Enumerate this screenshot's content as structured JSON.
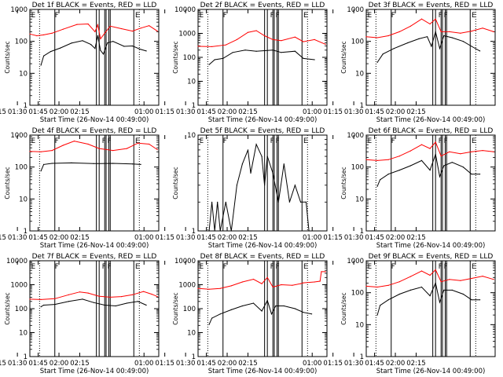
{
  "colors": {
    "events": "#000000",
    "lld": "#ff0000",
    "background": "#ffffff",
    "axis": "#000000"
  },
  "chart_data": [
    {
      "type": "line",
      "title": "Det 1f BLACK = Events, RED = LLD",
      "xlabel": "Start Time (26-Nov-14 00:49:00)",
      "ylabel": "Counts/sec",
      "yscale": "log",
      "ylim": [
        1,
        1000
      ],
      "xlim_min": [
        50,
        143
      ],
      "xticklabels": [
        "01:00",
        "01:15",
        "01:30",
        "01:45",
        "02:00",
        "02:15"
      ],
      "yticklabels": [
        "1",
        "10",
        "100",
        "1000"
      ],
      "dotted_lines_min": [
        57,
        129
      ],
      "solid_lines_min": [
        68,
        98,
        100,
        104,
        105,
        107,
        108,
        125
      ],
      "markers": [
        {
          "label": "E",
          "x": 51
        },
        {
          "label": "F",
          "x": 68
        },
        {
          "label": "E",
          "x": 126
        }
      ],
      "series": [
        {
          "name": "BLACK = Events",
          "x": [
            58,
            60,
            65,
            72,
            80,
            88,
            94,
            97,
            99,
            101,
            103,
            106,
            110,
            118,
            124,
            130,
            134
          ],
          "values": [
            18,
            35,
            48,
            62,
            88,
            105,
            80,
            60,
            150,
            52,
            40,
            90,
            100,
            70,
            72,
            56,
            50
          ]
        },
        {
          "name": "RED = LLD",
          "x": [
            50,
            55,
            60,
            66,
            74,
            84,
            92,
            97,
            99,
            101,
            104,
            108,
            116,
            124,
            130,
            136,
            142
          ],
          "values": [
            170,
            150,
            160,
            180,
            240,
            340,
            350,
            200,
            330,
            120,
            180,
            300,
            250,
            210,
            260,
            310,
            210
          ]
        }
      ]
    },
    {
      "type": "line",
      "title": "Det 2f BLACK = Events, RED = LLD",
      "xlabel": "Start Time (26-Nov-14 00:49:00)",
      "ylabel": "Counts/sec",
      "yscale": "log",
      "ylim": [
        1,
        10000
      ],
      "xlim_min": [
        50,
        143
      ],
      "xticklabels": [
        "01:00",
        "01:15",
        "01:30",
        "01:45",
        "02:00",
        "02:15"
      ],
      "yticklabels": [
        "1",
        "10",
        "100",
        "1000",
        "10000"
      ],
      "dotted_lines_min": [
        57,
        129
      ],
      "solid_lines_min": [
        68,
        98,
        100,
        104,
        105,
        107,
        108,
        125
      ],
      "markers": [
        {
          "label": "E",
          "x": 51
        },
        {
          "label": "F",
          "x": 68
        },
        {
          "label": "F",
          "x": 102
        },
        {
          "label": "F",
          "x": 106
        },
        {
          "label": "E",
          "x": 126
        }
      ],
      "series": [
        {
          "name": "BLACK = Events",
          "x": [
            58,
            62,
            68,
            75,
            84,
            92,
            98,
            104,
            110,
            120,
            126,
            134
          ],
          "values": [
            50,
            80,
            90,
            160,
            200,
            180,
            190,
            200,
            160,
            180,
            90,
            80
          ]
        },
        {
          "name": "RED = LLD",
          "x": [
            50,
            60,
            70,
            78,
            86,
            92,
            98,
            104,
            110,
            120,
            126,
            134,
            142
          ],
          "values": [
            290,
            280,
            330,
            550,
            1100,
            1300,
            800,
            550,
            500,
            700,
            450,
            550,
            350
          ]
        }
      ]
    },
    {
      "type": "line",
      "title": "Det 3f BLACK = Events, RED = LLD",
      "xlabel": "Start Time (26-Nov-14 00:49:00)",
      "ylabel": "Counts/sec",
      "yscale": "log",
      "ylim": [
        1,
        1000
      ],
      "xlim_min": [
        50,
        143
      ],
      "xticklabels": [
        "01:00",
        "01:15",
        "01:30",
        "01:45",
        "02:00",
        "02:15"
      ],
      "yticklabels": [
        "1",
        "10",
        "100",
        "1000"
      ],
      "dotted_lines_min": [
        57,
        129
      ],
      "solid_lines_min": [
        68,
        98,
        100,
        104,
        105,
        107,
        108,
        125
      ],
      "markers": [
        {
          "label": "E",
          "x": 51
        },
        {
          "label": "F",
          "x": 68
        },
        {
          "label": "F",
          "x": 102
        },
        {
          "label": "F",
          "x": 106
        },
        {
          "label": "E",
          "x": 126
        }
      ],
      "series": [
        {
          "name": "BLACK = Events",
          "x": [
            58,
            62,
            70,
            80,
            88,
            94,
            97,
            100,
            103,
            106,
            112,
            120,
            126,
            132
          ],
          "values": [
            22,
            40,
            60,
            90,
            120,
            140,
            70,
            200,
            60,
            150,
            130,
            100,
            70,
            50
          ]
        },
        {
          "name": "RED = LLD",
          "x": [
            50,
            58,
            66,
            74,
            82,
            90,
            96,
            100,
            104,
            110,
            118,
            126,
            134,
            142
          ],
          "values": [
            140,
            130,
            150,
            200,
            300,
            500,
            350,
            500,
            200,
            200,
            180,
            210,
            260,
            200
          ]
        }
      ]
    },
    {
      "type": "line",
      "title": "Det 4f BLACK = Events, RED = LLD",
      "xlabel": "Start Time (26-Nov-14 00:49:00)",
      "ylabel": "Counts/sec",
      "yscale": "log",
      "ylim": [
        1,
        1000
      ],
      "xlim_min": [
        50,
        143
      ],
      "xticklabels": [
        "01:00",
        "01:15",
        "01:30",
        "01:45",
        "02:00",
        "02:15"
      ],
      "yticklabels": [
        "1",
        "10",
        "100",
        "1000"
      ],
      "dotted_lines_min": [
        57,
        129
      ],
      "solid_lines_min": [
        68,
        98,
        100,
        104,
        105,
        107,
        108,
        125
      ],
      "markers": [
        {
          "label": "E",
          "x": 51
        },
        {
          "label": "F",
          "x": 68
        },
        {
          "label": "F",
          "x": 102
        },
        {
          "label": "F",
          "x": 106
        },
        {
          "label": "E",
          "x": 126
        }
      ],
      "series": [
        {
          "name": "BLACK = Events",
          "x": [
            58,
            60,
            66,
            80,
            96,
            110,
            124,
            130
          ],
          "values": [
            75,
            120,
            130,
            135,
            128,
            130,
            125,
            120
          ]
        },
        {
          "name": "RED = LLD",
          "x": [
            50,
            58,
            66,
            74,
            82,
            92,
            100,
            110,
            120,
            128,
            136,
            142
          ],
          "values": [
            310,
            300,
            330,
            480,
            650,
            520,
            380,
            330,
            380,
            560,
            520,
            350
          ]
        }
      ]
    },
    {
      "type": "line",
      "title": "Det 5f BLACK = Events, RED = LLD",
      "xlabel": "Start Time (26-Nov-14 00:49:00)",
      "ylabel": "Counts/sec",
      "yscale": "log",
      "ylim": [
        1,
        10
      ],
      "xlim_min": [
        50,
        143
      ],
      "xticklabels": [
        "01:00",
        "01:15",
        "01:30",
        "01:45",
        "02:00",
        "02:15"
      ],
      "yticklabels": [
        "1",
        "10"
      ],
      "dotted_lines_min": [
        57,
        129
      ],
      "solid_lines_min": [
        68,
        98,
        100,
        104,
        105,
        107,
        108,
        125
      ],
      "markers": [
        {
          "label": "E",
          "x": 51
        },
        {
          "label": "F",
          "x": 68
        },
        {
          "label": "F",
          "x": 102
        },
        {
          "label": "F",
          "x": 106
        },
        {
          "label": "E",
          "x": 126
        }
      ],
      "series": [
        {
          "name": "BLACK = Events",
          "x": [
            58,
            60,
            62,
            64,
            66,
            70,
            74,
            78,
            82,
            86,
            88,
            92,
            96,
            98,
            100,
            104,
            108,
            112,
            116,
            120,
            124,
            128,
            130
          ],
          "values": [
            1,
            2,
            1,
            2,
            1,
            2,
            1,
            3,
            5,
            7,
            4,
            8,
            6,
            3,
            6,
            4,
            2,
            5,
            2,
            3,
            2,
            2,
            1
          ]
        }
      ]
    },
    {
      "type": "line",
      "title": "Det 6f BLACK = Events, RED = LLD",
      "xlabel": "Start Time (26-Nov-14 00:49:00)",
      "ylabel": "Counts/sec",
      "yscale": "log",
      "ylim": [
        1,
        1000
      ],
      "xlim_min": [
        50,
        143
      ],
      "xticklabels": [
        "01:00",
        "01:15",
        "01:30",
        "01:45",
        "02:00",
        "02:15"
      ],
      "yticklabels": [
        "1",
        "10",
        "100",
        "1000"
      ],
      "dotted_lines_min": [
        57,
        129
      ],
      "solid_lines_min": [
        68,
        98,
        100,
        104,
        105,
        107,
        108,
        125
      ],
      "markers": [
        {
          "label": "E",
          "x": 51
        },
        {
          "label": "F",
          "x": 68
        },
        {
          "label": "F",
          "x": 102
        },
        {
          "label": "F",
          "x": 106
        },
        {
          "label": "E",
          "x": 126
        }
      ],
      "series": [
        {
          "name": "BLACK = Events",
          "x": [
            58,
            60,
            66,
            74,
            82,
            90,
            96,
            100,
            103,
            106,
            112,
            120,
            126,
            132
          ],
          "values": [
            25,
            40,
            60,
            80,
            110,
            160,
            80,
            250,
            50,
            110,
            140,
            100,
            60,
            60
          ]
        },
        {
          "name": "RED = LLD",
          "x": [
            50,
            58,
            66,
            74,
            82,
            90,
            96,
            100,
            104,
            110,
            118,
            126,
            134,
            142
          ],
          "values": [
            170,
            160,
            170,
            220,
            320,
            500,
            380,
            600,
            220,
            300,
            260,
            300,
            330,
            300
          ]
        }
      ]
    },
    {
      "type": "line",
      "title": "Det 7f BLACK = Events, RED = LLD",
      "xlabel": "Start Time (26-Nov-14 00:49:00)",
      "ylabel": "Counts/sec",
      "yscale": "log",
      "ylim": [
        1,
        10000
      ],
      "xlim_min": [
        50,
        143
      ],
      "xticklabels": [
        "01:00",
        "01:15",
        "01:30",
        "01:45",
        "02:00",
        "02:15"
      ],
      "yticklabels": [
        "1",
        "10",
        "100",
        "1000",
        "10000"
      ],
      "dotted_lines_min": [
        57,
        129
      ],
      "solid_lines_min": [
        68,
        98,
        100,
        104,
        105,
        107,
        108,
        125
      ],
      "markers": [
        {
          "label": "E",
          "x": 51
        },
        {
          "label": "F",
          "x": 68
        },
        {
          "label": "F",
          "x": 102
        },
        {
          "label": "F",
          "x": 106
        },
        {
          "label": "E",
          "x": 126
        }
      ],
      "series": [
        {
          "name": "BLACK = Events",
          "x": [
            58,
            60,
            68,
            78,
            88,
            96,
            104,
            112,
            120,
            128,
            134
          ],
          "values": [
            120,
            140,
            150,
            200,
            250,
            180,
            140,
            130,
            170,
            200,
            140
          ]
        },
        {
          "name": "RED = LLD",
          "x": [
            50,
            58,
            68,
            78,
            86,
            92,
            100,
            108,
            116,
            124,
            132,
            138,
            142
          ],
          "values": [
            250,
            240,
            260,
            380,
            500,
            450,
            330,
            300,
            320,
            380,
            520,
            400,
            320
          ]
        }
      ]
    },
    {
      "type": "line",
      "title": "Det 8f BLACK = Events, RED = LLD",
      "xlabel": "Start Time (26-Nov-14 00:49:00)",
      "ylabel": "Counts/sec",
      "yscale": "log",
      "ylim": [
        1,
        10000
      ],
      "xlim_min": [
        50,
        143
      ],
      "xticklabels": [
        "01:00",
        "01:15",
        "01:30",
        "01:45",
        "02:00",
        "02:15"
      ],
      "yticklabels": [
        "1",
        "10",
        "100",
        "1000",
        "10000"
      ],
      "dotted_lines_min": [
        57,
        129
      ],
      "solid_lines_min": [
        68,
        98,
        100,
        104,
        105,
        107,
        108,
        125
      ],
      "markers": [
        {
          "label": "E",
          "x": 51
        },
        {
          "label": "F",
          "x": 68
        },
        {
          "label": "F",
          "x": 102
        },
        {
          "label": "F",
          "x": 106
        },
        {
          "label": "E",
          "x": 126
        }
      ],
      "series": [
        {
          "name": "BLACK = Events",
          "x": [
            58,
            60,
            66,
            74,
            82,
            90,
            96,
            100,
            103,
            106,
            112,
            120,
            126,
            132
          ],
          "values": [
            22,
            40,
            60,
            90,
            130,
            170,
            80,
            220,
            60,
            130,
            130,
            100,
            70,
            60
          ]
        },
        {
          "name": "RED = LLD",
          "x": [
            50,
            58,
            66,
            74,
            82,
            90,
            96,
            100,
            104,
            110,
            118,
            124,
            126,
            134,
            138,
            139,
            142
          ],
          "values": [
            700,
            650,
            700,
            900,
            1300,
            1700,
            1100,
            2000,
            800,
            1000,
            950,
            1100,
            1200,
            1300,
            1400,
            3500,
            3500
          ]
        }
      ]
    },
    {
      "type": "line",
      "title": "Det 9f BLACK = Events, RED = LLD",
      "xlabel": "Start Time (26-Nov-14 00:49:00)",
      "ylabel": "Counts/sec",
      "yscale": "log",
      "ylim": [
        1,
        1000
      ],
      "xlim_min": [
        50,
        143
      ],
      "xticklabels": [
        "01:00",
        "01:15",
        "01:30",
        "01:45",
        "02:00",
        "02:15"
      ],
      "yticklabels": [
        "1",
        "10",
        "100",
        "1000"
      ],
      "dotted_lines_min": [
        57,
        129
      ],
      "solid_lines_min": [
        68,
        98,
        100,
        104,
        105,
        107,
        108,
        125
      ],
      "markers": [
        {
          "label": "E",
          "x": 51
        },
        {
          "label": "F",
          "x": 68
        },
        {
          "label": "F",
          "x": 102
        },
        {
          "label": "F",
          "x": 106
        },
        {
          "label": "E",
          "x": 126
        }
      ],
      "series": [
        {
          "name": "BLACK = Events",
          "x": [
            58,
            60,
            66,
            74,
            82,
            90,
            96,
            100,
            103,
            106,
            112,
            120,
            126,
            132
          ],
          "values": [
            20,
            40,
            60,
            90,
            120,
            150,
            80,
            200,
            50,
            120,
            120,
            90,
            60,
            60
          ]
        },
        {
          "name": "RED = LLD",
          "x": [
            50,
            58,
            66,
            74,
            82,
            90,
            96,
            100,
            104,
            110,
            118,
            126,
            134,
            142
          ],
          "values": [
            160,
            150,
            170,
            220,
            320,
            480,
            350,
            520,
            220,
            260,
            240,
            280,
            330,
            260
          ]
        }
      ]
    }
  ]
}
